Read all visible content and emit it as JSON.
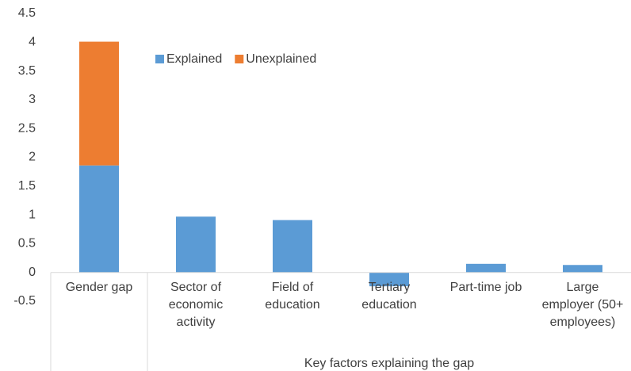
{
  "chart_data": {
    "type": "stacked_bar",
    "categories": [
      "Gender gap",
      "Sector of economic activity",
      "Field of education",
      "Tertiary education",
      "Part-time job",
      "Large employer (50+ employees)"
    ],
    "group_label": "Key factors explaining the gap",
    "series": [
      {
        "name": "Explained",
        "color": "#5b9bd5",
        "values": [
          1.86,
          0.97,
          0.91,
          -0.24,
          0.15,
          0.13
        ]
      },
      {
        "name": "Unexplained",
        "color": "#ed7d31",
        "values": [
          2.15,
          null,
          null,
          null,
          null,
          null
        ]
      }
    ],
    "ylim": [
      -0.5,
      4.5
    ],
    "yticks": [
      -0.5,
      0,
      0.5,
      1,
      1.5,
      2,
      2.5,
      3,
      3.5,
      4,
      4.5
    ],
    "grid": false
  }
}
